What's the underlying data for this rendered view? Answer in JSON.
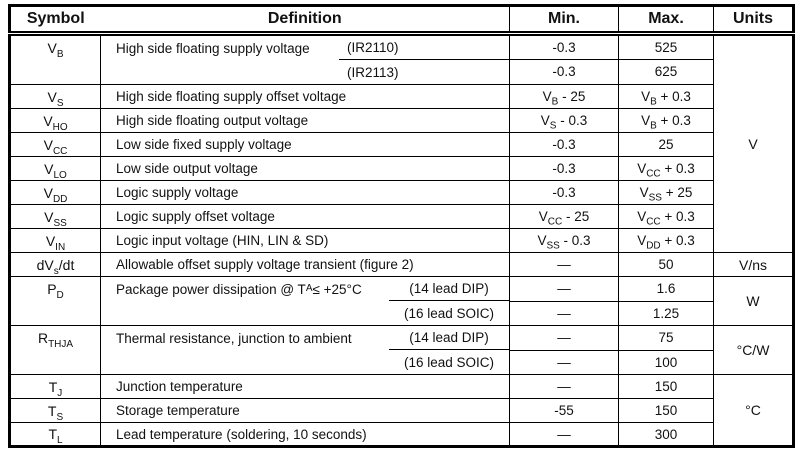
{
  "colors": {
    "ink": "#111111",
    "line": "#000000"
  },
  "table": {
    "header": {
      "symbol": "Symbol",
      "definition": "Definition",
      "min": "Min.",
      "max": "Max.",
      "units": "Units"
    },
    "rows": [
      {
        "symbol": "V~B~",
        "definition": "High side floating supply voltage",
        "variant": "(IR2110)",
        "min": "-0.3",
        "max": "525"
      },
      {
        "symbol": "",
        "definition": "",
        "variant": "(IR2113)",
        "min": "-0.3",
        "max": "625"
      },
      {
        "symbol": "V~S~",
        "definition": "High side floating supply offset voltage",
        "min": "V~B~ - 25",
        "max": "V~B~ + 0.3"
      },
      {
        "symbol": "V~HO~",
        "definition": "High side floating output voltage",
        "min": "V~S~ - 0.3",
        "max": "V~B~ + 0.3"
      },
      {
        "symbol": "V~CC~",
        "definition": "Low side fixed supply voltage",
        "min": "-0.3",
        "max": "25"
      },
      {
        "symbol": "V~LO~",
        "definition": "Low side output voltage",
        "min": "-0.3",
        "max": "V~CC~ + 0.3"
      },
      {
        "symbol": "V~DD~",
        "definition": "Logic supply voltage",
        "min": "-0.3",
        "max": "V~SS~ + 25"
      },
      {
        "symbol": "V~SS~",
        "definition": "Logic supply offset voltage",
        "min": "V~CC~ - 25",
        "max": "V~CC~ + 0.3"
      },
      {
        "symbol": "V~IN~",
        "definition": "Logic input voltage (HIN, LIN & SD)",
        "min": "V~SS~ - 0.3",
        "max": "V~DD~ + 0.3"
      },
      {
        "symbol": "dV~s~/dt",
        "definition": "Allowable offset supply voltage transient (figure 2)",
        "min": "—",
        "max": "50"
      },
      {
        "symbol": "P~D~",
        "definition": "Package power dissipation @ T~A~ ≤ +25°C",
        "variant": "(14 lead DIP)",
        "min": "—",
        "max": "1.6"
      },
      {
        "symbol": "",
        "definition": "",
        "variant": "(16 lead SOIC)",
        "min": "—",
        "max": "1.25"
      },
      {
        "symbol": "R~THJA~",
        "definition": "Thermal resistance, junction to ambient",
        "variant": "(14 lead DIP)",
        "min": "—",
        "max": "75"
      },
      {
        "symbol": "",
        "definition": "",
        "variant": "(16 lead SOIC)",
        "min": "—",
        "max": "100"
      },
      {
        "symbol": "T~J~",
        "definition": "Junction temperature",
        "min": "—",
        "max": "150"
      },
      {
        "symbol": "T~S~",
        "definition": "Storage temperature",
        "min": "-55",
        "max": "150"
      },
      {
        "symbol": "T~L~",
        "definition": "Lead temperature (soldering, 10 seconds)",
        "min": "—",
        "max": "300"
      }
    ],
    "units": [
      {
        "label": "V",
        "row_span": 9
      },
      {
        "label": "V/ns",
        "row_span": 1
      },
      {
        "label": "W",
        "row_span": 2
      },
      {
        "label": "°C/W",
        "row_span": 2
      },
      {
        "label": "°C",
        "row_span": 3
      }
    ]
  }
}
